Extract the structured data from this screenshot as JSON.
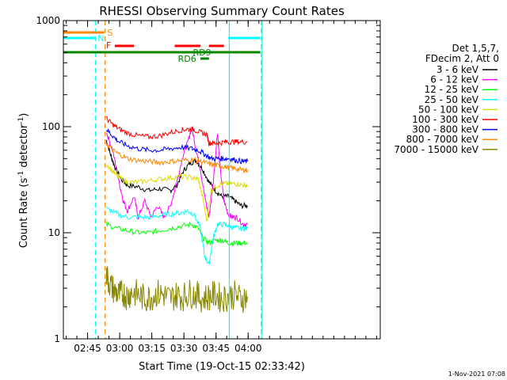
{
  "chart_data": {
    "type": "line",
    "title": "RHESSI Observing Summary Count Rates",
    "xlabel": "Start Time (19-Oct-15 02:33:42)",
    "ylabel": "Count Rate (s",
    "ylabel_sup": "-1",
    "ylabel_tail": " detector",
    "ylabel_close": ")",
    "x_range_min": [
      0,
      148
    ],
    "y_range": [
      1,
      1000
    ],
    "y_scale": "log",
    "x_ticks": [
      {
        "min": 11.3,
        "label": "02:45"
      },
      {
        "min": 26.3,
        "label": "03:00"
      },
      {
        "min": 41.3,
        "label": "03:15"
      },
      {
        "min": 56.3,
        "label": "03:30"
      },
      {
        "min": 71.3,
        "label": "03:45"
      },
      {
        "min": 86.3,
        "label": "04:00"
      }
    ],
    "y_ticks": [
      {
        "value": 1,
        "label": "1"
      },
      {
        "value": 10,
        "label": "10"
      },
      {
        "value": 100,
        "label": "100"
      },
      {
        "value": 1000,
        "label": "1000"
      }
    ],
    "legend_header": [
      "Det 1,5,7,",
      "FDecim 2, Att 0"
    ],
    "series": [
      {
        "name": "3 - 6 keV",
        "color": "#000000",
        "points": [
          [
            20,
            75
          ],
          [
            22,
            55
          ],
          [
            24,
            42
          ],
          [
            27,
            32
          ],
          [
            30,
            28
          ],
          [
            35,
            27
          ],
          [
            40,
            25
          ],
          [
            45,
            26
          ],
          [
            50,
            25
          ],
          [
            53,
            28
          ],
          [
            56,
            38
          ],
          [
            59,
            45
          ],
          [
            62,
            48
          ],
          [
            65,
            40
          ],
          [
            68,
            30
          ],
          [
            71,
            25
          ],
          [
            74,
            22
          ],
          [
            77,
            22
          ],
          [
            80,
            20
          ],
          [
            83,
            18
          ],
          [
            86,
            18
          ]
        ]
      },
      {
        "name": "6 - 12 keV",
        "color": "#ff00ff",
        "points": [
          [
            20,
            90
          ],
          [
            23,
            60
          ],
          [
            26,
            30
          ],
          [
            28,
            20
          ],
          [
            30,
            16
          ],
          [
            33,
            22
          ],
          [
            35,
            14
          ],
          [
            38,
            20
          ],
          [
            41,
            14
          ],
          [
            44,
            18
          ],
          [
            47,
            14
          ],
          [
            50,
            18
          ],
          [
            53,
            30
          ],
          [
            56,
            55
          ],
          [
            58,
            70
          ],
          [
            60,
            100
          ],
          [
            62,
            60
          ],
          [
            64,
            40
          ],
          [
            66,
            22
          ],
          [
            68,
            14
          ],
          [
            70,
            30
          ],
          [
            72,
            90
          ],
          [
            73,
            45
          ],
          [
            75,
            20
          ],
          [
            77,
            15
          ],
          [
            79,
            14
          ],
          [
            81,
            14
          ],
          [
            84,
            12
          ],
          [
            86,
            12
          ]
        ]
      },
      {
        "name": "12 - 25 keV",
        "color": "#00ff00",
        "points": [
          [
            20,
            12
          ],
          [
            25,
            11
          ],
          [
            30,
            10.5
          ],
          [
            35,
            10
          ],
          [
            40,
            10
          ],
          [
            45,
            10.5
          ],
          [
            50,
            11
          ],
          [
            55,
            11.5
          ],
          [
            60,
            12
          ],
          [
            63,
            11
          ],
          [
            65,
            9
          ],
          [
            68,
            8
          ],
          [
            71,
            8.5
          ],
          [
            74,
            8.5
          ],
          [
            77,
            8
          ],
          [
            80,
            8
          ],
          [
            83,
            8
          ],
          [
            86,
            8
          ]
        ]
      },
      {
        "name": "25 - 50 keV",
        "color": "#00ffff",
        "points": [
          [
            20,
            17
          ],
          [
            25,
            15
          ],
          [
            30,
            14
          ],
          [
            35,
            14
          ],
          [
            40,
            14
          ],
          [
            45,
            14.5
          ],
          [
            50,
            15
          ],
          [
            55,
            15.5
          ],
          [
            58,
            16
          ],
          [
            61,
            15
          ],
          [
            64,
            11
          ],
          [
            66,
            6
          ],
          [
            68,
            5
          ],
          [
            70,
            9
          ],
          [
            72,
            12
          ],
          [
            75,
            12
          ],
          [
            78,
            11.5
          ],
          [
            81,
            11
          ],
          [
            84,
            11
          ],
          [
            86,
            11
          ]
        ]
      },
      {
        "name": "50 - 100 keV",
        "color": "#dddd00",
        "points": [
          [
            20,
            45
          ],
          [
            23,
            38
          ],
          [
            26,
            33
          ],
          [
            30,
            30
          ],
          [
            35,
            30
          ],
          [
            40,
            31
          ],
          [
            45,
            32
          ],
          [
            50,
            33
          ],
          [
            55,
            34
          ],
          [
            60,
            33
          ],
          [
            63,
            32
          ],
          [
            65,
            22
          ],
          [
            67,
            13
          ],
          [
            69,
            25
          ],
          [
            72,
            28
          ],
          [
            75,
            29
          ],
          [
            78,
            29
          ],
          [
            81,
            29
          ],
          [
            84,
            28
          ],
          [
            86,
            28
          ]
        ]
      },
      {
        "name": "100 - 300 keV",
        "color": "#ff0000",
        "points": [
          [
            20,
            120
          ],
          [
            23,
            105
          ],
          [
            26,
            95
          ],
          [
            30,
            87
          ],
          [
            35,
            82
          ],
          [
            40,
            80
          ],
          [
            45,
            82
          ],
          [
            50,
            88
          ],
          [
            55,
            93
          ],
          [
            58,
            95
          ],
          [
            61,
            94
          ],
          [
            64,
            88
          ],
          [
            67,
            85
          ],
          [
            68,
            70
          ],
          [
            70,
            70
          ],
          [
            73,
            70
          ],
          [
            76,
            72
          ],
          [
            79,
            72
          ],
          [
            82,
            72
          ],
          [
            86,
            72
          ]
        ]
      },
      {
        "name": "300 - 800 keV",
        "color": "#0000ff",
        "points": [
          [
            20,
            95
          ],
          [
            23,
            82
          ],
          [
            26,
            72
          ],
          [
            30,
            66
          ],
          [
            35,
            62
          ],
          [
            40,
            60
          ],
          [
            45,
            60
          ],
          [
            50,
            62
          ],
          [
            55,
            64
          ],
          [
            60,
            62
          ],
          [
            63,
            60
          ],
          [
            66,
            55
          ],
          [
            69,
            50
          ],
          [
            72,
            50
          ],
          [
            75,
            50
          ],
          [
            78,
            50
          ],
          [
            81,
            48
          ],
          [
            84,
            47
          ],
          [
            86,
            47
          ]
        ]
      },
      {
        "name": "800 - 7000 keV",
        "color": "#ff8800",
        "points": [
          [
            20,
            70
          ],
          [
            23,
            60
          ],
          [
            26,
            55
          ],
          [
            30,
            50
          ],
          [
            35,
            48
          ],
          [
            40,
            47
          ],
          [
            45,
            46
          ],
          [
            50,
            47
          ],
          [
            55,
            48
          ],
          [
            60,
            49
          ],
          [
            63,
            48
          ],
          [
            66,
            46
          ],
          [
            69,
            44
          ],
          [
            72,
            43
          ],
          [
            75,
            42
          ],
          [
            78,
            41
          ],
          [
            81,
            40
          ],
          [
            84,
            39
          ],
          [
            86,
            39
          ]
        ]
      },
      {
        "name": "7000 - 15000 keV",
        "color": "#888800",
        "points": [
          [
            20,
            4
          ],
          [
            22,
            3.2
          ],
          [
            24,
            2.8
          ],
          [
            26,
            2.6
          ],
          [
            28,
            2.7
          ],
          [
            30,
            2.5
          ],
          [
            32,
            2.8
          ],
          [
            35,
            2.6
          ],
          [
            38,
            2.4
          ],
          [
            41,
            2.5
          ],
          [
            44,
            2.7
          ],
          [
            47,
            2.6
          ],
          [
            50,
            2.4
          ],
          [
            53,
            2.6
          ],
          [
            56,
            2.5
          ],
          [
            59,
            2.7
          ],
          [
            62,
            2.6
          ],
          [
            65,
            2.4
          ],
          [
            68,
            2.5
          ],
          [
            71,
            2.6
          ],
          [
            74,
            2.4
          ],
          [
            77,
            2.5
          ],
          [
            80,
            2.6
          ],
          [
            83,
            2.4
          ],
          [
            86,
            2.5
          ]
        ]
      }
    ],
    "bars": [
      {
        "label": "S",
        "color": "#ff8800",
        "segments": [
          [
            0,
            19
          ]
        ]
      },
      {
        "label": "N",
        "color": "#00ffff",
        "segments": [
          [
            0,
            15
          ],
          [
            77,
            92
          ]
        ]
      },
      {
        "label": "F",
        "color": "#ff0000",
        "segments": [
          [
            24,
            33
          ],
          [
            52,
            64
          ],
          [
            68,
            75
          ]
        ]
      },
      {
        "label": "RD9",
        "color": "#008800",
        "segments": [
          [
            0,
            92
          ]
        ]
      },
      {
        "label": "RD6",
        "color": "#008800",
        "segments": [
          [
            64,
            68
          ]
        ]
      }
    ],
    "vlines": [
      {
        "min": 15,
        "color": "#00ffff",
        "style": "dashed"
      },
      {
        "min": 19.5,
        "color": "#ff8800",
        "style": "dashed"
      },
      {
        "min": 77.5,
        "color": "#00ffff",
        "style": "solid"
      },
      {
        "min": 92.5,
        "color": "#ff8800",
        "style": "dashed"
      },
      {
        "min": 92.8,
        "color": "#00ffff",
        "style": "solid"
      }
    ],
    "footer": "1-Nov-2021 07:08"
  }
}
